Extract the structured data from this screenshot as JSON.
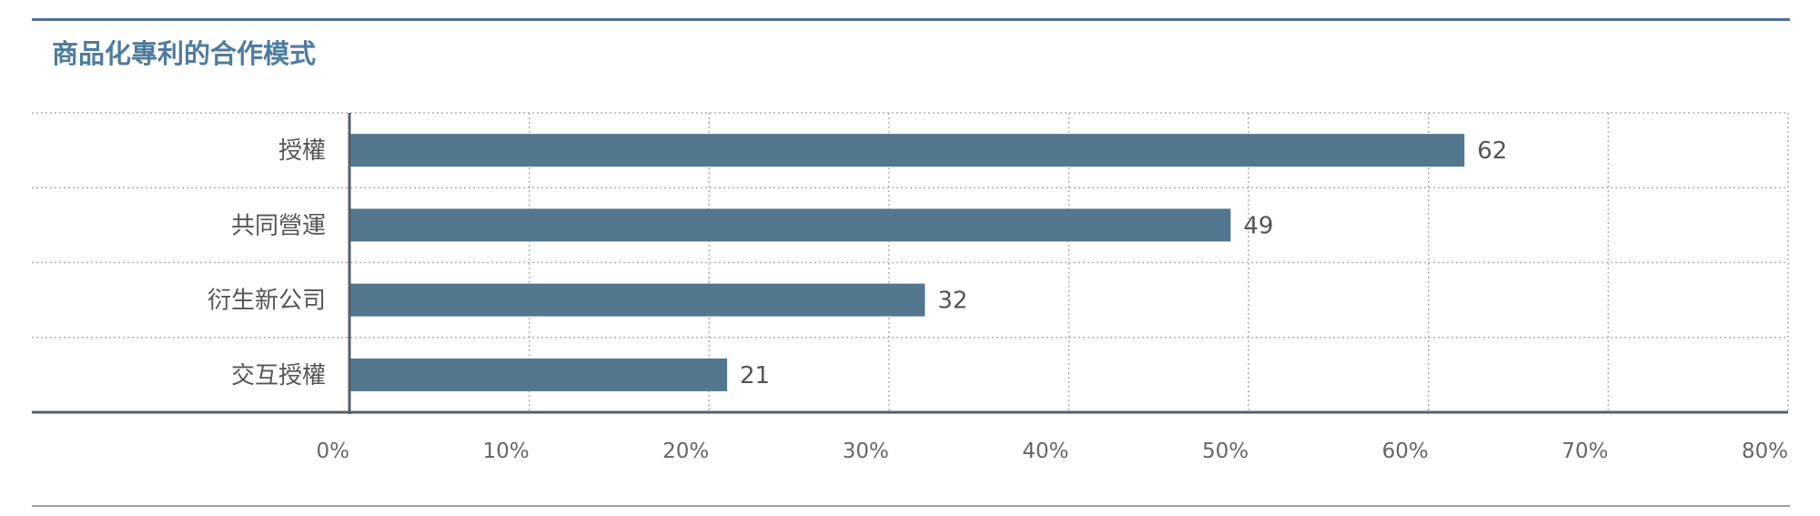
{
  "title": "商品化專利的合作模式",
  "colors": {
    "bar": "#52778f",
    "title": "#4f7c9e",
    "axis": "#55606a",
    "grid": "#aab2b9"
  },
  "chart_data": {
    "type": "bar",
    "orientation": "horizontal",
    "title": "商品化專利的合作模式",
    "categories": [
      "授權",
      "共同營運",
      "衍生新公司",
      "交互授權"
    ],
    "values": [
      62,
      49,
      32,
      21
    ],
    "value_labels": [
      "62",
      "49",
      "32",
      "21"
    ],
    "xlim": [
      0,
      80
    ],
    "x_ticks": [
      0,
      10,
      20,
      30,
      40,
      50,
      60,
      70,
      80
    ],
    "x_tick_labels": [
      "0%",
      "10%",
      "20%",
      "30%",
      "40%",
      "50%",
      "60%",
      "70%",
      "80%"
    ],
    "xlabel": "",
    "ylabel": "",
    "grid": true
  }
}
